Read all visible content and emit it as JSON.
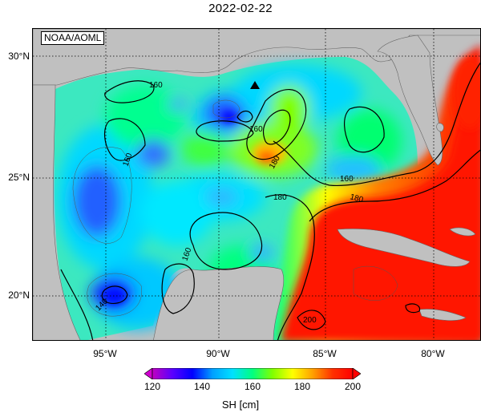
{
  "title": "2022-02-22",
  "credit": "NOAA/AOML",
  "lat_labels": [
    "30°N",
    "25°N",
    "20°N"
  ],
  "lon_labels": [
    "95°W",
    "90°W",
    "85°W",
    "80°W"
  ],
  "contour_labels": [
    "160",
    "160",
    "160",
    "160",
    "180",
    "180",
    "180",
    "160",
    "140",
    "200"
  ],
  "colorbar": {
    "ticks": [
      "120",
      "140",
      "160",
      "180",
      "200"
    ],
    "label": "SH [cm]",
    "range": [
      120,
      200
    ],
    "colors": [
      "#c000c0",
      "#5a00ff",
      "#0000ff",
      "#00a0ff",
      "#00e0ff",
      "#00ff80",
      "#80ff00",
      "#ffff00",
      "#ffa000",
      "#ff3000",
      "#ff0000"
    ]
  },
  "colors": {
    "land": "#c0c0c0",
    "ocean_low": "#0000ff",
    "ocean_high": "#ff0000"
  },
  "marker": "triangle-marker"
}
